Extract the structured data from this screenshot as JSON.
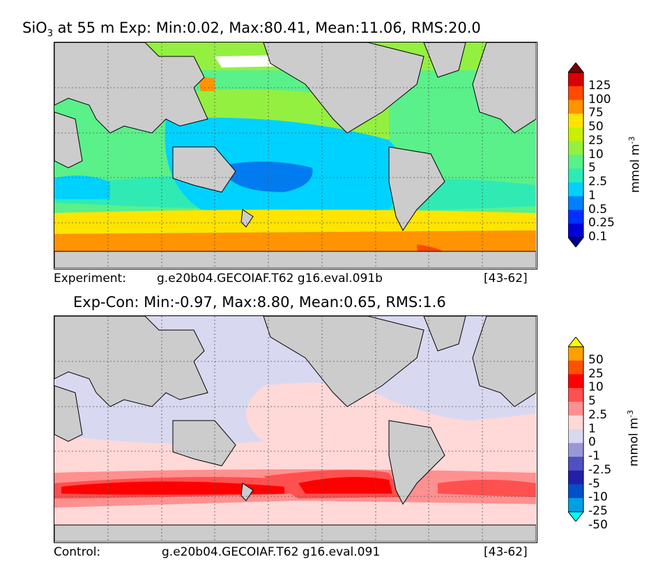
{
  "panel_top": {
    "title_prefix": "SiO",
    "title_sub": "3",
    "title_rest": " at 55 m Exp: Min:0.02, Max:80.41, Mean:11.06, RMS:20.0",
    "footer_label": "Experiment:",
    "footer_case": "g.e20b04.GECOIAF.T62 g16.eval.091b",
    "footer_years": "[43-62]",
    "colorbar": {
      "unit_base": "mmol m",
      "unit_exp": "-3",
      "ticks": [
        "125",
        "100",
        "75",
        "50",
        "25",
        "10",
        "5",
        "2.5",
        "1",
        "0.5",
        "0.25",
        "0.1"
      ],
      "colors": [
        "#7a0000",
        "#d80000",
        "#ff4a00",
        "#ff9400",
        "#ffe400",
        "#c8f000",
        "#94f040",
        "#5af08a",
        "#30eab4",
        "#00d2ff",
        "#0080ff",
        "#0030ff",
        "#0000d8",
        "#00008c"
      ]
    }
  },
  "panel_bottom": {
    "title": "Exp-Con: Min:-0.97, Max:8.80, Mean:0.65, RMS:1.6",
    "footer_label": "Control:",
    "footer_case": "g.e20b04.GECOIAF.T62 g16.eval.091",
    "footer_years": "[43-62]",
    "colorbar": {
      "unit_base": "mmol m",
      "unit_exp": "-3",
      "ticks": [
        "50",
        "25",
        "10",
        "5",
        "2.5",
        "1",
        "0",
        "-1",
        "-2.5",
        "-5",
        "-10",
        "-25",
        "-50"
      ],
      "colors": [
        "#ffff00",
        "#ffa000",
        "#ff5000",
        "#ff0000",
        "#ff5050",
        "#ff9090",
        "#ffd8d8",
        "#d8d8f0",
        "#9898d8",
        "#5050c0",
        "#2020a8",
        "#0050c8",
        "#00a0e0",
        "#00ffff"
      ]
    }
  },
  "colors": {
    "land": "#cccccc",
    "top_ocean": {
      "core": "#007cf0",
      "tropics": "#00d2ff",
      "midlat": "#30eab4",
      "subpolar": "#5af08a",
      "north": "#94f040",
      "south1": "#ffe400",
      "south2": "#ff9400",
      "south3": "#ff4a00"
    },
    "bottom_ocean": {
      "neg": "#d8d8f0",
      "pos0": "#ffd8d8",
      "pos1": "#ff9090",
      "pos2": "#ff5050",
      "pos3": "#ff0000"
    }
  }
}
